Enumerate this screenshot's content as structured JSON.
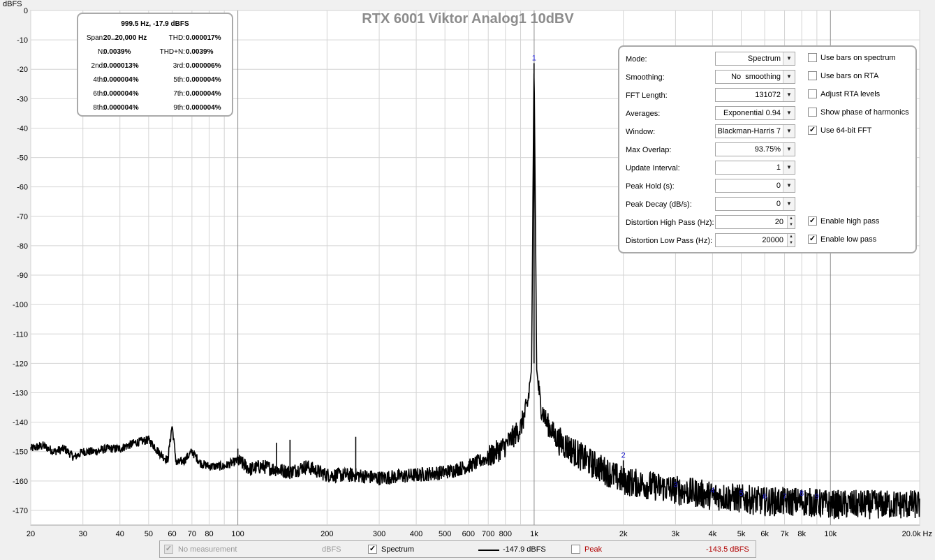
{
  "chart_data": {
    "type": "line",
    "title": "RTX 6001 Viktor Analog1 10dBV",
    "ylabel": "dBFS",
    "xunit": "Hz",
    "xscale": "log",
    "xlim": [
      20,
      20000
    ],
    "ylim": [
      -175,
      0
    ],
    "yticks": [
      0,
      -10,
      -20,
      -30,
      -40,
      -50,
      -60,
      -70,
      -80,
      -90,
      -100,
      -110,
      -120,
      -130,
      -140,
      -150,
      -160,
      -170
    ],
    "xticks": [
      {
        "v": 20,
        "label": "20"
      },
      {
        "v": 30,
        "label": "30"
      },
      {
        "v": 40,
        "label": "40"
      },
      {
        "v": 50,
        "label": "50"
      },
      {
        "v": 60,
        "label": "60"
      },
      {
        "v": 70,
        "label": "70"
      },
      {
        "v": 80,
        "label": "80"
      },
      {
        "v": 100,
        "label": "100"
      },
      {
        "v": 200,
        "label": "200"
      },
      {
        "v": 300,
        "label": "300"
      },
      {
        "v": 400,
        "label": "400"
      },
      {
        "v": 500,
        "label": "500"
      },
      {
        "v": 600,
        "label": "600"
      },
      {
        "v": 700,
        "label": "700"
      },
      {
        "v": 800,
        "label": "800"
      },
      {
        "v": 1000,
        "label": "1k"
      },
      {
        "v": 2000,
        "label": "2k"
      },
      {
        "v": 3000,
        "label": "3k"
      },
      {
        "v": 4000,
        "label": "4k"
      },
      {
        "v": 5000,
        "label": "5k"
      },
      {
        "v": 6000,
        "label": "6k"
      },
      {
        "v": 7000,
        "label": "7k"
      },
      {
        "v": 8000,
        "label": "8k"
      },
      {
        "v": 10000,
        "label": "10k"
      },
      {
        "v": 20000,
        "label": "20.0k Hz"
      }
    ],
    "grid": true,
    "series": [
      {
        "name": "Spectrum",
        "color": "#000000",
        "points": [
          [
            20,
            -149
          ],
          [
            22,
            -148
          ],
          [
            24,
            -150
          ],
          [
            26,
            -149
          ],
          [
            28,
            -152
          ],
          [
            30,
            -150
          ],
          [
            33,
            -150
          ],
          [
            36,
            -149
          ],
          [
            40,
            -149
          ],
          [
            45,
            -147
          ],
          [
            50,
            -146
          ],
          [
            55,
            -151
          ],
          [
            58,
            -153
          ],
          [
            60,
            -141
          ],
          [
            62,
            -154
          ],
          [
            66,
            -153
          ],
          [
            70,
            -150
          ],
          [
            75,
            -154
          ],
          [
            80,
            -155
          ],
          [
            90,
            -155
          ],
          [
            100,
            -153
          ],
          [
            110,
            -156
          ],
          [
            120,
            -155
          ],
          [
            150,
            -157
          ],
          [
            170,
            -155
          ],
          [
            200,
            -158
          ],
          [
            250,
            -158
          ],
          [
            300,
            -159
          ],
          [
            400,
            -158
          ],
          [
            500,
            -157
          ],
          [
            600,
            -155
          ],
          [
            700,
            -152
          ],
          [
            800,
            -148
          ],
          [
            900,
            -142
          ],
          [
            950,
            -134
          ],
          [
            980,
            -122
          ],
          [
            999.5,
            -17.9
          ],
          [
            1020,
            -122
          ],
          [
            1050,
            -134
          ],
          [
            1100,
            -140
          ],
          [
            1200,
            -146
          ],
          [
            1500,
            -153
          ],
          [
            2000,
            -160
          ],
          [
            3000,
            -163
          ],
          [
            4000,
            -165
          ],
          [
            5000,
            -166
          ],
          [
            6000,
            -167
          ],
          [
            8000,
            -167
          ],
          [
            10000,
            -168
          ],
          [
            15000,
            -168
          ],
          [
            20000,
            -168
          ]
        ],
        "spikes": [
          {
            "x": 60,
            "y": -141
          },
          {
            "x": 71,
            "y": -150
          },
          {
            "x": 100,
            "y": -149
          },
          {
            "x": 135,
            "y": -147
          },
          {
            "x": 150,
            "y": -146
          },
          {
            "x": 250,
            "y": -145
          },
          {
            "x": 2000,
            "y": -153
          }
        ]
      }
    ],
    "harmonic_markers": [
      {
        "label": "1",
        "x": 999.5,
        "y": -17.9
      },
      {
        "label": "2",
        "x": 2000,
        "y": -153
      },
      {
        "label": "3",
        "x": 3000,
        "y": -163
      },
      {
        "label": "4",
        "x": 4000,
        "y": -165
      },
      {
        "label": "5",
        "x": 5000,
        "y": -166
      },
      {
        "label": "6",
        "x": 6000,
        "y": -167
      },
      {
        "label": "7",
        "x": 7000,
        "y": -167
      },
      {
        "label": "8",
        "x": 8000,
        "y": -166
      },
      {
        "label": "9",
        "x": 9000,
        "y": -167
      }
    ]
  },
  "distortion_panel": {
    "header": "999.5 Hz, -17.9 dBFS",
    "rows": [
      {
        "l1": "Span:",
        "v1": "20..20,000 Hz",
        "l2": "THD:",
        "v2": "0.000017%"
      },
      {
        "l1": "N:",
        "v1": "0.0039%",
        "l2": "THD+N:",
        "v2": "0.0039%"
      },
      {
        "l1": "2nd:",
        "v1": "0.000013%",
        "l2": "3rd:",
        "v2": "0.000006%"
      },
      {
        "l1": "4th:",
        "v1": "0.000004%",
        "l2": "5th:",
        "v2": "0.000004%"
      },
      {
        "l1": "6th:",
        "v1": "0.000004%",
        "l2": "7th:",
        "v2": "0.000004%"
      },
      {
        "l1": "8th:",
        "v1": "0.000004%",
        "l2": "9th:",
        "v2": "0.000004%"
      }
    ]
  },
  "controls": {
    "mode": {
      "label": "Mode:",
      "value": "Spectrum"
    },
    "smoothing": {
      "label": "Smoothing:",
      "value": "No  smoothing"
    },
    "fft_length": {
      "label": "FFT Length:",
      "value": "131072"
    },
    "averages": {
      "label": "Averages:",
      "value": "Exponential 0.94"
    },
    "window": {
      "label": "Window:",
      "value": "Blackman-Harris 7"
    },
    "max_overlap": {
      "label": "Max Overlap:",
      "value": "93.75%"
    },
    "update_interval": {
      "label": "Update Interval:",
      "value": "1"
    },
    "peak_hold": {
      "label": "Peak Hold (s):",
      "value": "0"
    },
    "peak_decay": {
      "label": "Peak Decay (dB/s):",
      "value": "0"
    },
    "dist_high_pass": {
      "label": "Distortion High Pass (Hz):",
      "value": "20"
    },
    "dist_low_pass": {
      "label": "Distortion Low Pass (Hz):",
      "value": "20000"
    },
    "use_bars_spectrum": {
      "label": "Use bars on spectrum",
      "checked": false
    },
    "use_bars_rta": {
      "label": "Use bars on RTA",
      "checked": false
    },
    "adjust_rta": {
      "label": "Adjust RTA levels",
      "checked": false
    },
    "show_phase": {
      "label": "Show phase of harmonics",
      "checked": false
    },
    "use_64bit": {
      "label": "Use 64-bit FFT",
      "checked": true
    },
    "enable_high_pass": {
      "label": "Enable high pass",
      "checked": true
    },
    "enable_low_pass": {
      "label": "Enable low pass",
      "checked": true
    }
  },
  "legend": {
    "no_measurement": "No measurement",
    "no_measurement_unit": "dBFS",
    "spectrum_label": "Spectrum",
    "spectrum_value": "-147.9 dBFS",
    "peak_label": "Peak",
    "peak_value": "-143.5 dBFS",
    "peak_color": "#b00000",
    "disabled_color": "#999999"
  },
  "icons": {
    "check": "✓",
    "arrow_down": "▼",
    "spin_up": "▲",
    "spin_down": "▼"
  }
}
